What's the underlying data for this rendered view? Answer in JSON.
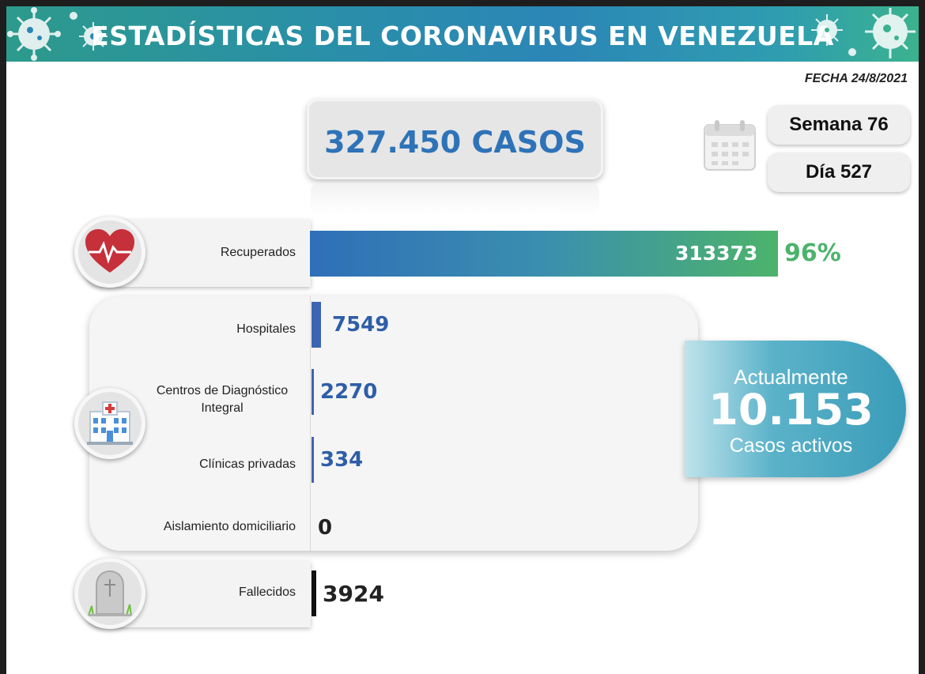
{
  "header": {
    "title": "ESTADÍSTICAS DEL CORONAVIRUS EN VENEZUELA",
    "date": "FECHA 24/8/2021"
  },
  "summary": {
    "total_cases": "327.450 CASOS",
    "week": "Semana 76",
    "day": "Día 527"
  },
  "recovered": {
    "label": "Recuperados",
    "value": "313373",
    "percent": "96%",
    "fraction": 0.96
  },
  "active_breakdown": [
    {
      "label": "Hospitales",
      "value": "7549"
    },
    {
      "label": "Centros de Diagnóstico Integral",
      "value": "2270"
    },
    {
      "label": "Clínicas privadas",
      "value": "334"
    },
    {
      "label": "Aislamiento domiciliario",
      "value": "0"
    }
  ],
  "deceased": {
    "label": "Fallecidos",
    "value": "3924"
  },
  "active": {
    "prefix": "Actualmente",
    "value": "10.153",
    "suffix": "Casos activos"
  },
  "icons": [
    "virus-icon",
    "calendar-icon",
    "heart-icon",
    "hospital-icon",
    "tombstone-icon"
  ],
  "colors": {
    "banner": "#2b86b6",
    "total_text": "#2e73b8",
    "recovered_start": "#2f6fb8",
    "recovered_end": "#4cb36b",
    "percent": "#4cb36b",
    "bar_blue": "#3b64b3",
    "deceased": "#111111",
    "active_bg": "#3a9cb8"
  }
}
